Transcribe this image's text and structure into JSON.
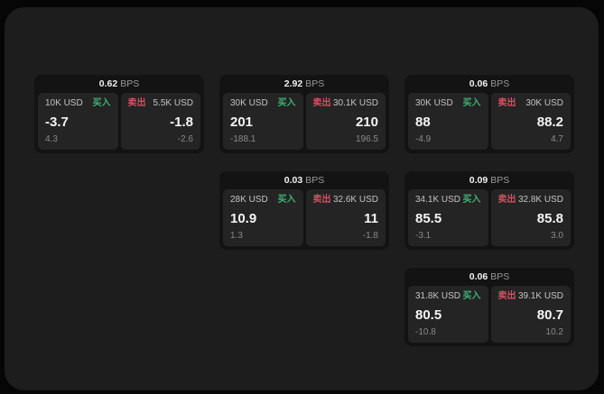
{
  "labels": {
    "buy": "买入",
    "sell": "卖出",
    "bps": "BPS"
  },
  "colors": {
    "buy": "#3fb075",
    "sell": "#d35161",
    "panel": "#1d1d1d",
    "card": "#131313",
    "tile": "#242424"
  },
  "cards": [
    {
      "bps": "0.62",
      "buy": {
        "amount": "10K USD",
        "price": "-3.7",
        "delta": "4.3"
      },
      "sell": {
        "amount": "5.5K USD",
        "price": "-1.8",
        "delta": "-2.6"
      }
    },
    {
      "bps": "2.92",
      "buy": {
        "amount": "30K USD",
        "price": "201",
        "delta": "-188.1"
      },
      "sell": {
        "amount": "30.1K USD",
        "price": "210",
        "delta": "196.5"
      }
    },
    {
      "bps": "0.06",
      "buy": {
        "amount": "30K USD",
        "price": "88",
        "delta": "-4.9"
      },
      "sell": {
        "amount": "30K USD",
        "price": "88.2",
        "delta": "4.7"
      }
    },
    {
      "bps": "0.03",
      "buy": {
        "amount": "28K USD",
        "price": "10.9",
        "delta": "1.3"
      },
      "sell": {
        "amount": "32.6K USD",
        "price": "11",
        "delta": "-1.8"
      }
    },
    {
      "bps": "0.09",
      "buy": {
        "amount": "34.1K USD",
        "price": "85.5",
        "delta": "-3.1"
      },
      "sell": {
        "amount": "32.8K USD",
        "price": "85.8",
        "delta": "3.0"
      }
    },
    {
      "bps": "0.06",
      "buy": {
        "amount": "31.8K USD",
        "price": "80.5",
        "delta": "-10.8"
      },
      "sell": {
        "amount": "39.1K USD",
        "price": "80.7",
        "delta": "10.2"
      }
    }
  ]
}
